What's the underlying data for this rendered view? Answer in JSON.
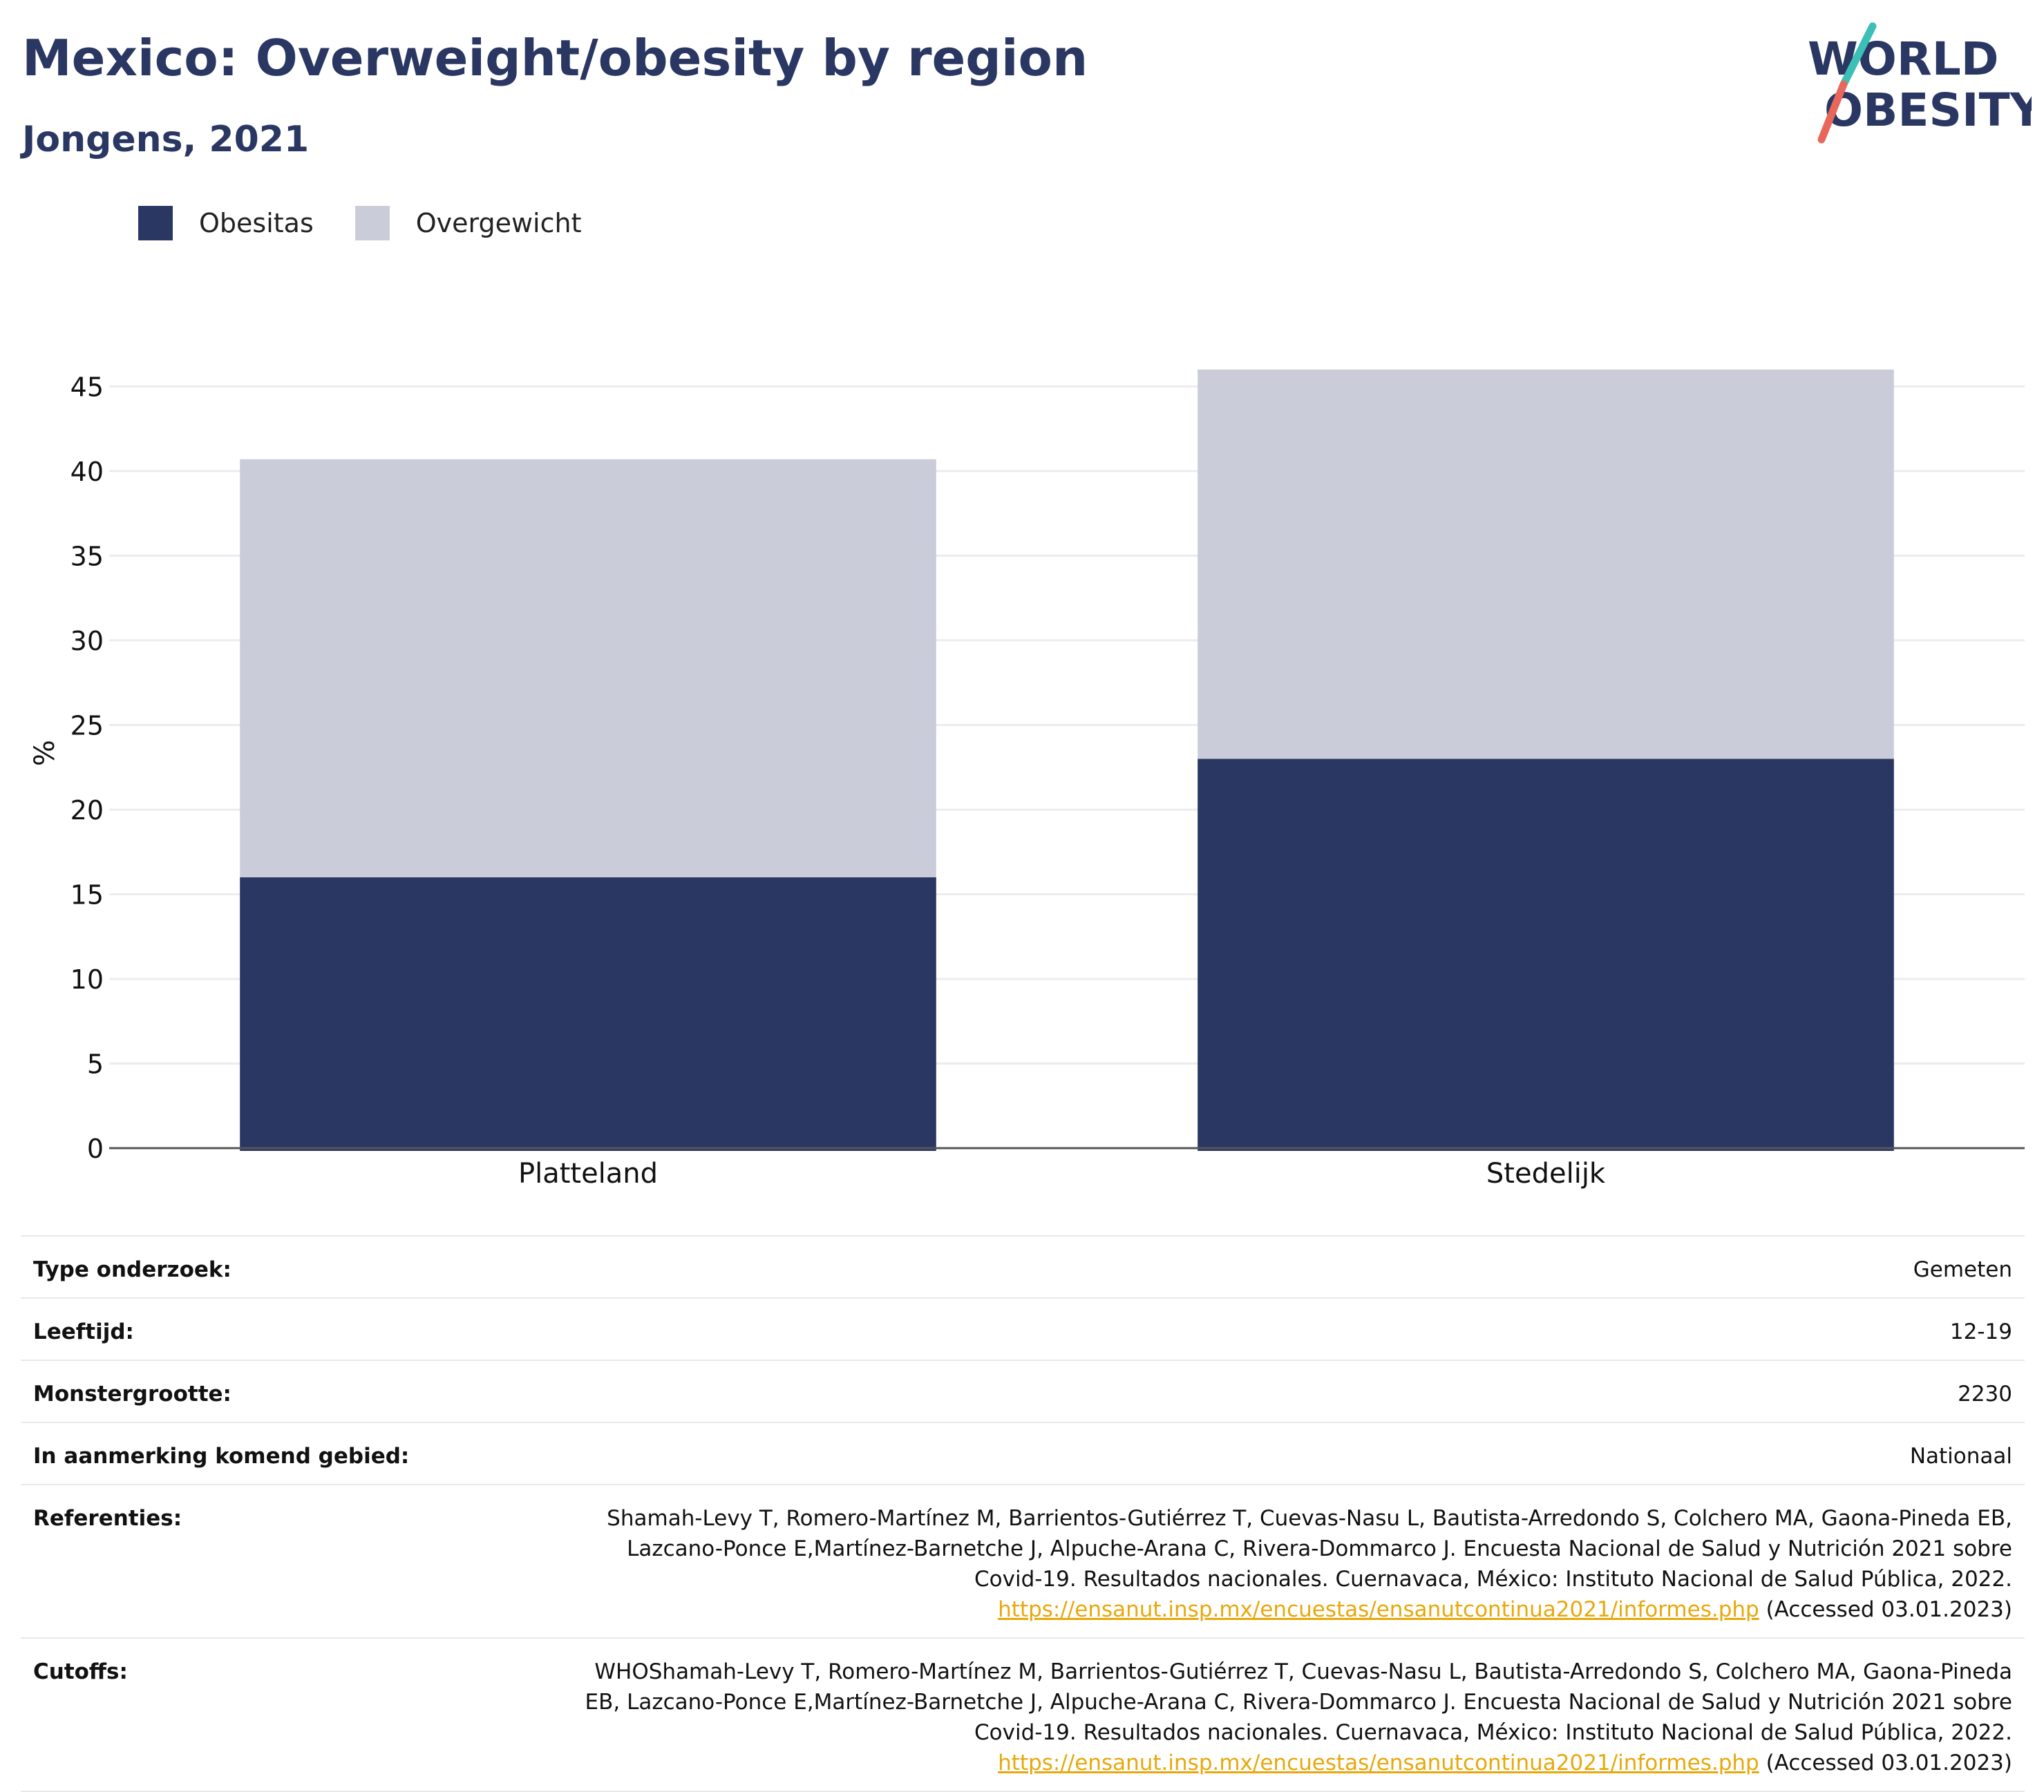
{
  "header": {
    "title": "Mexico: Overweight/obesity by region",
    "subtitle": "Jongens, 2021",
    "logo_line1": "WORLD",
    "logo_line2": "OBESITY"
  },
  "colors": {
    "obesity": "#2a3762",
    "overweight": "#cacdd9",
    "accent_teal": "#3bbfb6",
    "accent_coral": "#e8675a",
    "link": "#e8a80c"
  },
  "chart_data": {
    "type": "bar",
    "stacked": true,
    "categories": [
      "Platteland",
      "Stedelijk"
    ],
    "series": [
      {
        "name": "Obesitas",
        "values": [
          16.0,
          23.0
        ]
      },
      {
        "name": "Overgewicht",
        "values": [
          24.7,
          23.0
        ]
      }
    ],
    "ylabel": "%",
    "ylim": [
      0,
      45
    ],
    "yticks": [
      "0",
      "5",
      "10",
      "15",
      "20",
      "25",
      "30",
      "35",
      "40",
      "45"
    ],
    "legend_position": "top-left",
    "grid": true
  },
  "meta": {
    "survey_type": {
      "label": "Type onderzoek:",
      "value": "Gemeten"
    },
    "age": {
      "label": "Leeftijd:",
      "value": "12-19"
    },
    "sample_size": {
      "label": "Monstergrootte:",
      "value": "2230"
    },
    "area": {
      "label": "In aanmerking komend gebied:",
      "value": "Nationaal"
    },
    "references": {
      "label": "Referenties:",
      "line1": "Shamah-Levy T, Romero-Martínez M, Barrientos-Gutiérrez T, Cuevas-Nasu L, Bautista-Arredondo S, Colchero MA, Gaona-Pineda EB,",
      "line2": "Lazcano-Ponce E,Martínez-Barnetche J, Alpuche-Arana C, Rivera-Dommarco J. Encuesta Nacional de Salud y Nutrición 2021 sobre",
      "line3": "Covid-19. Resultados nacionales. Cuernavaca, México: Instituto Nacional de Salud Pública, 2022.",
      "link": "https://ensanut.insp.mx/encuestas/ensanutcontinua2021/informes.php",
      "accessed": "(Accessed 03.01.2023)"
    },
    "cutoffs": {
      "label": "Cutoffs:",
      "line1": "WHOShamah-Levy T, Romero-Martínez M, Barrientos-Gutiérrez T, Cuevas-Nasu L, Bautista-Arredondo S, Colchero MA, Gaona-Pineda",
      "line2": "EB, Lazcano-Ponce E,Martínez-Barnetche J, Alpuche-Arana C, Rivera-Dommarco J. Encuesta Nacional de Salud y Nutrición 2021 sobre",
      "line3": "Covid-19. Resultados nacionales. Cuernavaca, México: Instituto Nacional de Salud Pública, 2022.",
      "link": "https://ensanut.insp.mx/encuestas/ensanutcontinua2021/informes.php",
      "accessed": "(Accessed 03.01.2023)"
    }
  }
}
